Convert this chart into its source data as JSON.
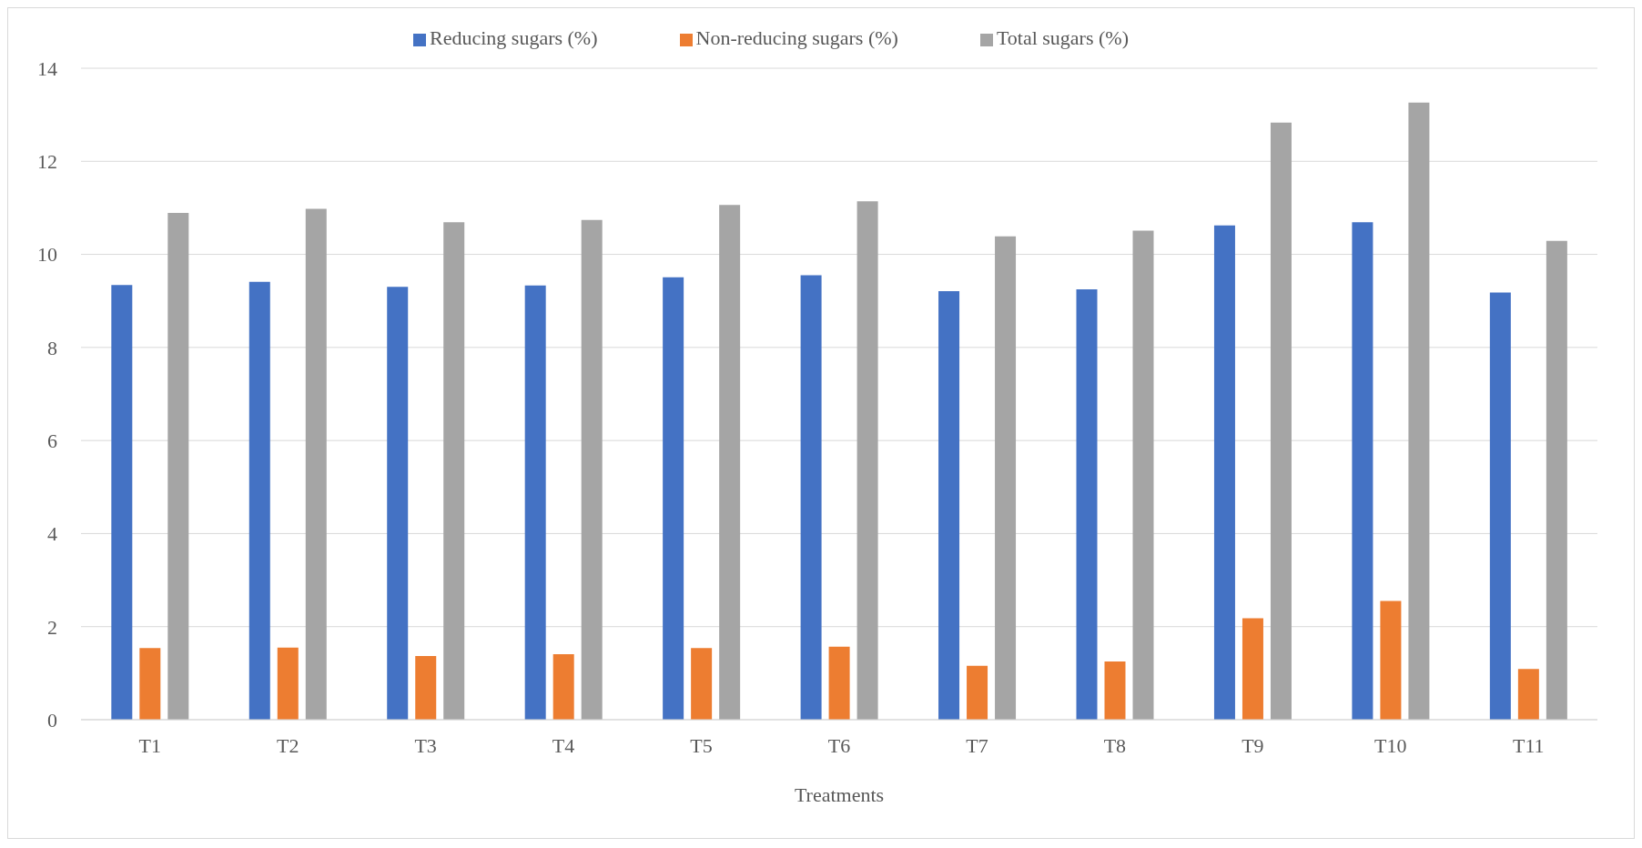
{
  "chart_data": {
    "type": "bar",
    "xlabel": "Treatments",
    "categories": [
      "T1",
      "T2",
      "T3",
      "T4",
      "T5",
      "T6",
      "T7",
      "T8",
      "T9",
      "T10",
      "T11"
    ],
    "series": [
      {
        "name": "Reducing sugars (%)",
        "color": "#4472c4",
        "values": [
          9.34,
          9.41,
          9.3,
          9.33,
          9.51,
          9.55,
          9.21,
          9.25,
          10.62,
          10.69,
          9.18
        ]
      },
      {
        "name": "Non-reducing sugars (%)",
        "color": "#ed7d31",
        "values": [
          1.54,
          1.55,
          1.37,
          1.41,
          1.54,
          1.57,
          1.16,
          1.25,
          2.18,
          2.55,
          1.09
        ]
      },
      {
        "name": "Total sugars (%)",
        "color": "#a5a5a5",
        "values": [
          10.89,
          10.98,
          10.69,
          10.74,
          11.06,
          11.14,
          10.39,
          10.51,
          12.83,
          13.26,
          10.29
        ]
      }
    ],
    "ylim": [
      0,
      14
    ],
    "yticks": [
      0,
      2,
      4,
      6,
      8,
      10,
      12,
      14
    ],
    "grid": "y",
    "legend": "top"
  }
}
